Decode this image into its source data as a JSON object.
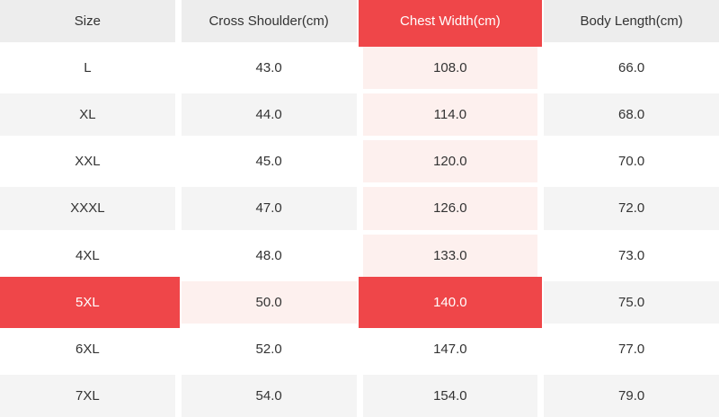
{
  "size_chart": {
    "columns": [
      {
        "key": "size",
        "label": "Size"
      },
      {
        "key": "cross_shoulder",
        "label": "Cross Shoulder(cm)"
      },
      {
        "key": "chest_width",
        "label": "Chest Width(cm)"
      },
      {
        "key": "body_length",
        "label": "Body Length(cm)"
      }
    ],
    "rows": [
      {
        "size": "L",
        "cross_shoulder": "43.0",
        "chest_width": "108.0",
        "body_length": "66.0"
      },
      {
        "size": "XL",
        "cross_shoulder": "44.0",
        "chest_width": "114.0",
        "body_length": "68.0"
      },
      {
        "size": "XXL",
        "cross_shoulder": "45.0",
        "chest_width": "120.0",
        "body_length": "70.0"
      },
      {
        "size": "XXXL",
        "cross_shoulder": "47.0",
        "chest_width": "126.0",
        "body_length": "72.0"
      },
      {
        "size": "4XL",
        "cross_shoulder": "48.0",
        "chest_width": "133.0",
        "body_length": "73.0"
      },
      {
        "size": "5XL",
        "cross_shoulder": "50.0",
        "chest_width": "140.0",
        "body_length": "75.0"
      },
      {
        "size": "6XL",
        "cross_shoulder": "52.0",
        "chest_width": "147.0",
        "body_length": "77.0"
      },
      {
        "size": "7XL",
        "cross_shoulder": "54.0",
        "chest_width": "154.0",
        "body_length": "79.0"
      }
    ],
    "highlight": {
      "selected_row_size": "5XL",
      "selected_column": "chest_width",
      "selected_value": "140.0"
    },
    "colors": {
      "accent_red": "#ef4649",
      "highlight_pink": "#fdf0ee",
      "header_gray": "#ededed",
      "alt_row_gray": "#f4f4f4",
      "text": "#333333",
      "text_on_red": "#ffffff"
    }
  }
}
